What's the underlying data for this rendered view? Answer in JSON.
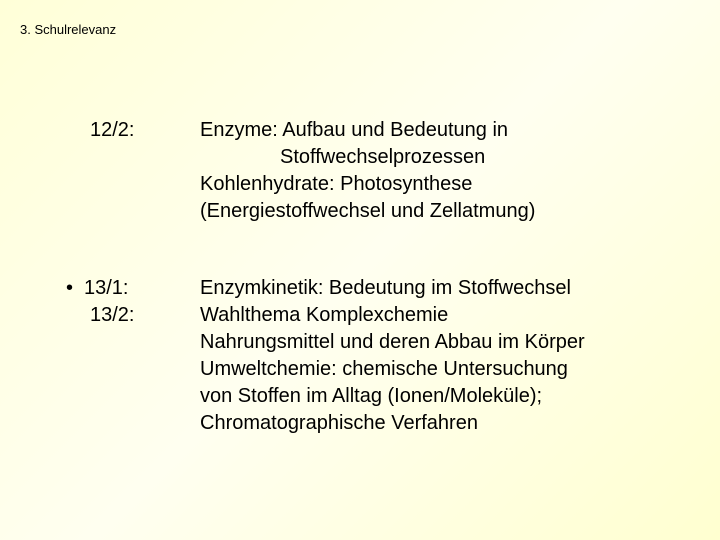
{
  "header": {
    "title": "3. Schulrelevanz"
  },
  "sections": [
    {
      "left": {
        "hasBullet": false,
        "lines": [
          "12/2:"
        ]
      },
      "right": {
        "lines": [
          {
            "text": "Enzyme: Aufbau und Bedeutung in",
            "indent": false
          },
          {
            "text": "Stoffwechselprozessen",
            "indent": true
          },
          {
            "text": "Kohlenhydrate: Photosynthese",
            "indent": false
          },
          {
            "text": "(Energiestoffwechsel und Zellatmung)",
            "indent": false
          }
        ]
      }
    },
    {
      "left": {
        "hasBullet": true,
        "lines": [
          "13/1:",
          "13/2:"
        ]
      },
      "right": {
        "lines": [
          {
            "text": "Enzymkinetik: Bedeutung im Stoffwechsel",
            "indent": false
          },
          {
            "text": "Wahlthema Komplexchemie",
            "indent": false
          },
          {
            "text": "Nahrungsmittel und deren Abbau im Körper",
            "indent": false
          },
          {
            "text": "Umweltchemie: chemische Untersuchung",
            "indent": false
          },
          {
            "text": "von Stoffen im Alltag (Ionen/Moleküle);",
            "indent": false
          },
          {
            "text": "Chromatographische Verfahren",
            "indent": false
          }
        ]
      }
    }
  ],
  "style": {
    "background_gradient": [
      "#ffffd8",
      "#fffff0",
      "#ffffd0"
    ],
    "text_color": "#000000",
    "header_fontsize": 13,
    "body_fontsize": 20,
    "bullet_char": "•"
  }
}
